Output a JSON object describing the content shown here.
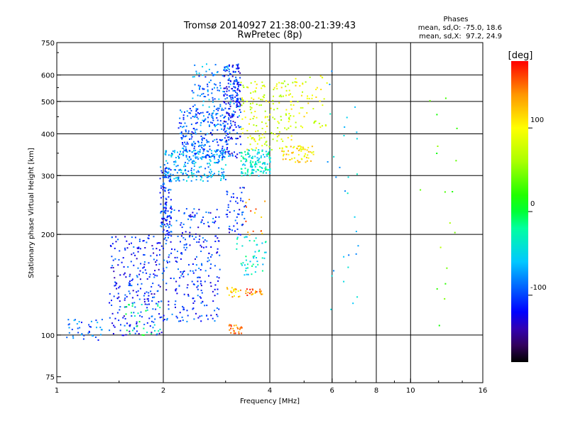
{
  "chart_data": {
    "type": "scatter",
    "title": "Tromsø 20140927 21:38:00-21:39:43",
    "subtitle": "RwPretec (8p)",
    "xlabel": "Frequency [MHz]",
    "ylabel": "Stationary phase Virtual Height [km]",
    "xscale": "log",
    "yscale": "log",
    "xlim": [
      1,
      16
    ],
    "ylim": [
      72,
      750
    ],
    "x_ticks": [
      1,
      2,
      4,
      6,
      8,
      10,
      16
    ],
    "x_tick_labels": [
      "1",
      "2",
      "4",
      "6",
      "8",
      "10",
      "16"
    ],
    "x_grid": [
      2,
      4,
      6,
      8,
      10
    ],
    "y_ticks": [
      75,
      100,
      200,
      300,
      400,
      500,
      600,
      750
    ],
    "y_tick_labels": [
      "75",
      "100",
      "200",
      "300",
      "400",
      "500",
      "600",
      "750"
    ],
    "grid": true,
    "legend": {
      "title": "Phases",
      "lines": [
        "mean, sd,O: -75.0, 18.6",
        "mean, sd,X:  97.2, 24.9"
      ],
      "placement": "top-right"
    },
    "colorbar": {
      "label": "[deg]",
      "range": [
        -180,
        180
      ],
      "ticks": [
        100,
        0,
        -100
      ],
      "tick_labels": [
        "100",
        "0",
        "-100"
      ],
      "colors": [
        "#ff0000",
        "#ff8800",
        "#ffff00",
        "#00ff00",
        "#00ffff",
        "#0000ff",
        "#000000"
      ]
    },
    "point_groups": [
      {
        "x": [
          1.05,
          1.35
        ],
        "y": [
          97,
          112
        ],
        "phase": -90,
        "count": 40
      },
      {
        "x": [
          1.4,
          2.0
        ],
        "y": [
          100,
          200
        ],
        "phase": -110,
        "count": 250
      },
      {
        "x": [
          1.55,
          1.95
        ],
        "y": [
          100,
          125
        ],
        "phase": -20,
        "count": 30
      },
      {
        "x": [
          2.0,
          2.9
        ],
        "y": [
          110,
          240
        ],
        "phase": -105,
        "count": 260
      },
      {
        "x": [
          1.95,
          2.1
        ],
        "y": [
          200,
          320
        ],
        "phase": -100,
        "count": 110
      },
      {
        "x": [
          2.0,
          3.0
        ],
        "y": [
          290,
          360
        ],
        "phase": -70,
        "count": 220
      },
      {
        "x": [
          2.2,
          3.1
        ],
        "y": [
          340,
          480
        ],
        "phase": -90,
        "count": 240
      },
      {
        "x": [
          2.4,
          3.3
        ],
        "y": [
          450,
          650
        ],
        "phase": -80,
        "count": 140
      },
      {
        "x": [
          2.95,
          3.3
        ],
        "y": [
          340,
          650
        ],
        "phase": -115,
        "count": 160
      },
      {
        "x": [
          3.0,
          3.4
        ],
        "y": [
          200,
          280
        ],
        "phase": -110,
        "count": 50
      },
      {
        "x": [
          3.3,
          4.0
        ],
        "y": [
          300,
          360
        ],
        "phase": -40,
        "count": 130
      },
      {
        "x": [
          3.3,
          4.6
        ],
        "y": [
          360,
          580
        ],
        "phase": 85,
        "count": 160
      },
      {
        "x": [
          4.3,
          5.3
        ],
        "y": [
          330,
          370
        ],
        "phase": 110,
        "count": 60
      },
      {
        "x": [
          4.5,
          5.8
        ],
        "y": [
          420,
          600
        ],
        "phase": 90,
        "count": 60
      },
      {
        "x": [
          3.05,
          3.35
        ],
        "y": [
          100,
          108
        ],
        "phase": 150,
        "count": 25
      },
      {
        "x": [
          3.0,
          3.3
        ],
        "y": [
          130,
          140
        ],
        "phase": 120,
        "count": 20
      },
      {
        "x": [
          3.4,
          3.8
        ],
        "y": [
          132,
          138
        ],
        "phase": 150,
        "count": 25
      },
      {
        "x": [
          3.2,
          3.9
        ],
        "y": [
          150,
          200
        ],
        "phase": -40,
        "count": 50
      },
      {
        "x": [
          3.4,
          3.9
        ],
        "y": [
          200,
          260
        ],
        "phase": 140,
        "count": 15
      },
      {
        "x": [
          5.8,
          7.3
        ],
        "y": [
          100,
          620
        ],
        "phase": -60,
        "count": 30
      },
      {
        "x": [
          10.5,
          13.5
        ],
        "y": [
          100,
          520
        ],
        "phase": 40,
        "count": 18
      }
    ]
  }
}
